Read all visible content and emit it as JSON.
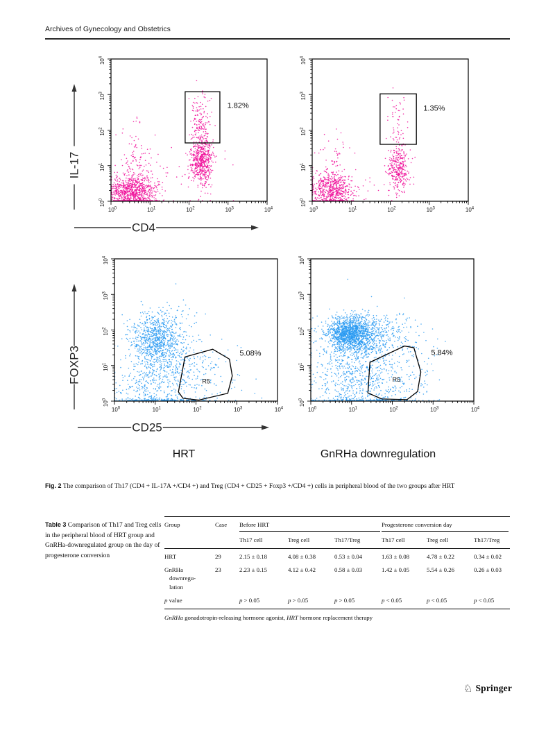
{
  "page": {
    "journal": "Archives of Gynecology and Obstetrics",
    "publisher": "Springer",
    "publisher_icon": "springer-knight-icon"
  },
  "figure": {
    "caption_label": "Fig. 2",
    "caption_text": "The comparison of Th17 (CD4 + IL-17A +/CD4 +) and Treg (CD4 + CD25 + Foxp3 +/CD4 +) cells in peripheral blood of the two groups after HRT",
    "group_labels": [
      "HRT",
      "GnRHa downregulation"
    ]
  },
  "chart_data": [
    {
      "id": "th17-hrt",
      "type": "scatter",
      "seed": 11,
      "x_axis": {
        "label": "CD4",
        "scale": "log",
        "ticks": [
          "10^0",
          "10^1",
          "10^2",
          "10^3",
          "10^4"
        ]
      },
      "y_axis": {
        "label": "IL-17",
        "scale": "log",
        "ticks": [
          "10^0",
          "10^1",
          "10^2",
          "10^3",
          "10^4"
        ]
      },
      "dot_color": "#f00f9a",
      "gate": {
        "shape": "rect",
        "x_log": [
          1.9,
          2.79
        ],
        "y_log": [
          1.64,
          3.08
        ],
        "percent": "1.82%",
        "percent_pos": [
          2.98,
          2.62
        ]
      },
      "clusters": [
        {
          "cx": 0.55,
          "cy": 0.27,
          "sx": 0.3,
          "sy": 0.24,
          "n": 850
        },
        {
          "cx": 0.6,
          "cy": 1.15,
          "sx": 0.22,
          "sy": 0.5,
          "n": 110
        },
        {
          "cx": 2.32,
          "cy": 1.1,
          "sx": 0.15,
          "sy": 0.32,
          "n": 520
        },
        {
          "cx": 2.3,
          "cy": 2.05,
          "sx": 0.13,
          "sy": 0.5,
          "n": 200
        },
        {
          "cx": 1.6,
          "cy": 0.6,
          "sx": 0.8,
          "sy": 0.5,
          "n": 30
        }
      ]
    },
    {
      "id": "th17-gnrha",
      "type": "scatter",
      "seed": 22,
      "x_axis": {
        "label": "CD4",
        "scale": "log",
        "ticks": [
          "10^0",
          "10^1",
          "10^2",
          "10^3",
          "10^4"
        ]
      },
      "y_axis": {
        "label": "IL-17",
        "scale": "log",
        "ticks": [
          "10^0",
          "10^1",
          "10^2",
          "10^3",
          "10^4"
        ]
      },
      "dot_color": "#f00f9a",
      "gate": {
        "shape": "rect",
        "x_log": [
          1.74,
          2.67
        ],
        "y_log": [
          1.6,
          3.02
        ],
        "percent": "1.35%",
        "percent_pos": [
          2.85,
          2.55
        ]
      },
      "clusters": [
        {
          "cx": 0.5,
          "cy": 0.3,
          "sx": 0.28,
          "sy": 0.25,
          "n": 620
        },
        {
          "cx": 0.55,
          "cy": 1.15,
          "sx": 0.25,
          "sy": 0.45,
          "n": 55
        },
        {
          "cx": 2.2,
          "cy": 0.9,
          "sx": 0.14,
          "sy": 0.3,
          "n": 300
        },
        {
          "cx": 2.18,
          "cy": 1.95,
          "sx": 0.12,
          "sy": 0.55,
          "n": 80
        },
        {
          "cx": 1.3,
          "cy": 0.4,
          "sx": 0.6,
          "sy": 0.4,
          "n": 18
        }
      ]
    },
    {
      "id": "treg-hrt",
      "type": "scatter",
      "seed": 33,
      "x_axis": {
        "label": "CD25",
        "scale": "log",
        "ticks": [
          "10^0",
          "10^1",
          "10^2",
          "10^3",
          "10^4"
        ]
      },
      "y_axis": {
        "label": "FOXP3",
        "scale": "log",
        "ticks": [
          "10^0",
          "10^1",
          "10^2",
          "10^3",
          "10^4"
        ]
      },
      "dot_color": "#2b9bf2",
      "gate": {
        "shape": "polygon",
        "name": "R5",
        "name_pos": [
          2.25,
          0.5
        ],
        "points_log": [
          [
            1.57,
            0.26
          ],
          [
            1.73,
            1.24
          ],
          [
            2.41,
            1.46
          ],
          [
            2.82,
            1.18
          ],
          [
            2.89,
            0.71
          ],
          [
            2.78,
            0.22
          ],
          [
            2.07,
            0.03
          ],
          [
            1.68,
            0.08
          ]
        ],
        "percent": "5.08%",
        "percent_pos": [
          3.07,
          1.28
        ]
      },
      "clusters": [
        {
          "cx": 1.0,
          "cy": 1.75,
          "sx": 0.3,
          "sy": 0.33,
          "n": 650
        },
        {
          "cx": 1.25,
          "cy": 1.2,
          "sx": 0.45,
          "sy": 0.55,
          "n": 420
        },
        {
          "cx": 0.9,
          "cy": 0.35,
          "sx": 0.5,
          "sy": 0.38,
          "n": 260
        },
        {
          "cx": 1.1,
          "cy": 0.0,
          "sx": 0.55,
          "sy": 0.05,
          "n": 170
        },
        {
          "cx": 2.2,
          "cy": 0.7,
          "sx": 0.5,
          "sy": 0.45,
          "n": 110
        },
        {
          "cx": 1.35,
          "cy": 2.3,
          "sx": 0.35,
          "sy": 0.22,
          "n": 60
        }
      ]
    },
    {
      "id": "treg-gnrha",
      "type": "scatter",
      "seed": 44,
      "x_axis": {
        "label": "CD25",
        "scale": "log",
        "ticks": [
          "10^0",
          "10^1",
          "10^2",
          "10^3",
          "10^4"
        ]
      },
      "y_axis": {
        "label": "FOXP3",
        "scale": "log",
        "ticks": [
          "10^0",
          "10^1",
          "10^2",
          "10^3",
          "10^4"
        ]
      },
      "dot_color": "#2b9bf2",
      "gate": {
        "shape": "polygon",
        "name": "R5",
        "name_pos": [
          2.1,
          0.55
        ],
        "points_log": [
          [
            1.4,
            0.23
          ],
          [
            1.45,
            1.09
          ],
          [
            2.3,
            1.55
          ],
          [
            2.53,
            1.5
          ],
          [
            2.7,
            0.82
          ],
          [
            2.62,
            0.27
          ],
          [
            2.36,
            0.04
          ],
          [
            1.74,
            0.06
          ]
        ],
        "percent": "5.84%",
        "percent_pos": [
          2.95,
          1.3
        ]
      },
      "clusters": [
        {
          "cx": 0.95,
          "cy": 1.9,
          "sx": 0.27,
          "sy": 0.22,
          "n": 1150
        },
        {
          "cx": 1.35,
          "cy": 1.85,
          "sx": 0.5,
          "sy": 0.33,
          "n": 620
        },
        {
          "cx": 1.0,
          "cy": 1.1,
          "sx": 0.5,
          "sy": 0.45,
          "n": 420
        },
        {
          "cx": 1.2,
          "cy": 0.35,
          "sx": 0.6,
          "sy": 0.32,
          "n": 230
        },
        {
          "cx": 1.3,
          "cy": 0.0,
          "sx": 0.65,
          "sy": 0.05,
          "n": 200
        },
        {
          "cx": 2.3,
          "cy": 0.85,
          "sx": 0.45,
          "sy": 0.5,
          "n": 130
        }
      ]
    }
  ],
  "table": {
    "caption_label": "Table 3",
    "caption_text": "Comparison of Th17 and Treg cells in the peripheral blood of HRT group and GnRHa-downregulated group on the day of progesterone conversion",
    "row_headers": [
      "Group",
      "Case"
    ],
    "col_groups": [
      {
        "label": "Before HRT",
        "cols": [
          "Th17 cell",
          "Treg cell",
          "Th17/Treg"
        ]
      },
      {
        "label": "Progesterone conversion day",
        "cols": [
          "Th17 cell",
          "Treg cell",
          "Th17/Treg"
        ]
      }
    ],
    "rows": [
      {
        "group": "HRT",
        "group_lines": [
          "HRT"
        ],
        "case": "29",
        "values": [
          "2.15 ± 0.18",
          "4.08 ± 0.38",
          "0.53 ± 0.04",
          "1.63 ± 0.08",
          "4.78 ± 0.22",
          "0.34 ± 0.02"
        ]
      },
      {
        "group": "GnRHa downregulation",
        "group_lines": [
          "GnRHa",
          "downregu-",
          "lation"
        ],
        "case": "23",
        "values": [
          "2.23 ± 0.15",
          "4.12 ± 0.42",
          "0.58 ± 0.03",
          "1.42 ± 0.05",
          "5.54 ± 0.26",
          "0.26 ± 0.03"
        ]
      },
      {
        "group": "p value",
        "group_lines": [
          "p value"
        ],
        "case": "",
        "values": [
          "p > 0.05",
          "p > 0.05",
          "p > 0.05",
          "p < 0.05",
          "p < 0.05",
          "p < 0.05"
        ]
      }
    ],
    "footnote_parts": [
      {
        "t": "GnRHa",
        "i": true
      },
      {
        "t": " gonadotropin-releasing hormone agonist, ",
        "i": false
      },
      {
        "t": "HRT",
        "i": true
      },
      {
        "t": " hormone replacement therapy",
        "i": false
      }
    ]
  }
}
